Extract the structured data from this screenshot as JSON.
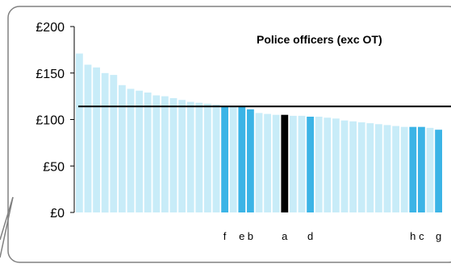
{
  "chart_data": {
    "type": "bar",
    "title": "Police officers (exc OT)",
    "y_ticks": [
      "£200",
      "£150",
      "£100",
      "£50",
      "£0"
    ],
    "y_tick_values": [
      200,
      150,
      100,
      50,
      0
    ],
    "ylim": [
      0,
      200
    ],
    "reference_line": 114,
    "grid": false,
    "colors": {
      "default_bar": "#c8ecf8",
      "highlight_bar": "#3bb4e6",
      "selected_bar": "#000000",
      "reference_line": "#000000",
      "frame": "#808080"
    },
    "categories": [
      "",
      "",
      "",
      "",
      "",
      "",
      "",
      "",
      "",
      "",
      "",
      "",
      "",
      "",
      "",
      "",
      "",
      "f",
      "",
      "e",
      "b",
      "",
      "",
      "",
      "a",
      "",
      "",
      "d",
      "",
      "",
      "",
      "",
      "",
      "",
      "",
      "",
      "",
      "",
      "",
      "h",
      "c",
      "",
      "g"
    ],
    "values": [
      171,
      159,
      156,
      150,
      148,
      137,
      133,
      131,
      129,
      126,
      125,
      123,
      121,
      119,
      118,
      117,
      116,
      114,
      114,
      114,
      111,
      107,
      106,
      105,
      105,
      104,
      104,
      103,
      103,
      102,
      101,
      99,
      98,
      97,
      96,
      95,
      94,
      93,
      92,
      92,
      92,
      91,
      89
    ],
    "highlight": [
      "default",
      "default",
      "default",
      "default",
      "default",
      "default",
      "default",
      "default",
      "default",
      "default",
      "default",
      "default",
      "default",
      "default",
      "default",
      "default",
      "default",
      "highlight",
      "default",
      "highlight",
      "highlight",
      "default",
      "default",
      "default",
      "selected",
      "default",
      "default",
      "highlight",
      "default",
      "default",
      "default",
      "default",
      "default",
      "default",
      "default",
      "default",
      "default",
      "default",
      "default",
      "highlight",
      "highlight",
      "default",
      "highlight"
    ]
  }
}
